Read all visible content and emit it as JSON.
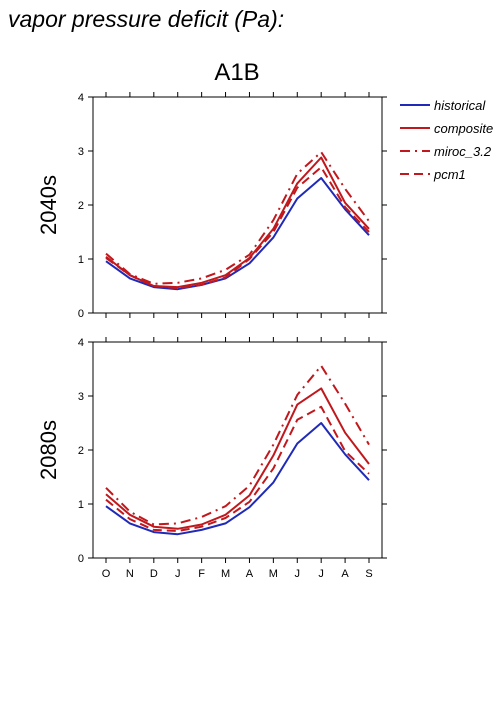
{
  "page": {
    "title": "vapor pressure deficit (Pa):",
    "scenario": "A1B"
  },
  "chart_data": [
    {
      "type": "line",
      "panel_label": "2040s",
      "categories": [
        "O",
        "N",
        "D",
        "J",
        "F",
        "M",
        "A",
        "M",
        "J",
        "J",
        "A",
        "S"
      ],
      "ylim": [
        0,
        4
      ],
      "yticks": [
        "0",
        "1",
        "2",
        "3",
        "4"
      ],
      "grid": false,
      "legend_position": "right",
      "series": [
        {
          "name": "historical",
          "color": "#1f2ab8",
          "dash": "solid",
          "values": [
            0.96,
            0.64,
            0.48,
            0.44,
            0.52,
            0.64,
            0.92,
            1.4,
            2.12,
            2.5,
            1.92,
            1.44
          ]
        },
        {
          "name": "composite",
          "color": "#c0181c",
          "dash": "solid",
          "values": [
            1.04,
            0.7,
            0.5,
            0.48,
            0.56,
            0.7,
            1.02,
            1.56,
            2.4,
            2.88,
            2.04,
            1.56
          ]
        },
        {
          "name": "miroc_3.2",
          "color": "#c0181c",
          "dash": "dashdot",
          "values": [
            1.1,
            0.72,
            0.54,
            0.56,
            0.64,
            0.8,
            1.08,
            1.72,
            2.58,
            2.98,
            2.3,
            1.7
          ]
        },
        {
          "name": "pcm1",
          "color": "#c0181c",
          "dash": "dash",
          "values": [
            1.02,
            0.7,
            0.5,
            0.46,
            0.52,
            0.66,
            1.0,
            1.5,
            2.32,
            2.7,
            1.96,
            1.5
          ]
        }
      ]
    },
    {
      "type": "line",
      "panel_label": "2080s",
      "categories": [
        "O",
        "N",
        "D",
        "J",
        "F",
        "M",
        "A",
        "M",
        "J",
        "J",
        "A",
        "S"
      ],
      "ylim": [
        0,
        4
      ],
      "yticks": [
        "0",
        "1",
        "2",
        "3",
        "4"
      ],
      "grid": false,
      "series": [
        {
          "name": "historical",
          "color": "#1f2ab8",
          "dash": "solid",
          "values": [
            0.96,
            0.64,
            0.48,
            0.44,
            0.52,
            0.64,
            0.94,
            1.4,
            2.12,
            2.5,
            1.92,
            1.44
          ]
        },
        {
          "name": "composite",
          "color": "#c0181c",
          "dash": "solid",
          "values": [
            1.18,
            0.8,
            0.58,
            0.54,
            0.62,
            0.8,
            1.16,
            1.9,
            2.84,
            3.14,
            2.32,
            1.74
          ]
        },
        {
          "name": "miroc_3.2",
          "color": "#c0181c",
          "dash": "dashdot",
          "values": [
            1.3,
            0.86,
            0.62,
            0.64,
            0.76,
            0.96,
            1.34,
            2.1,
            3.02,
            3.56,
            2.86,
            2.1
          ]
        },
        {
          "name": "pcm1",
          "color": "#c0181c",
          "dash": "dash",
          "values": [
            1.08,
            0.72,
            0.52,
            0.5,
            0.58,
            0.74,
            1.04,
            1.66,
            2.56,
            2.8,
            1.98,
            1.56
          ]
        }
      ]
    }
  ]
}
